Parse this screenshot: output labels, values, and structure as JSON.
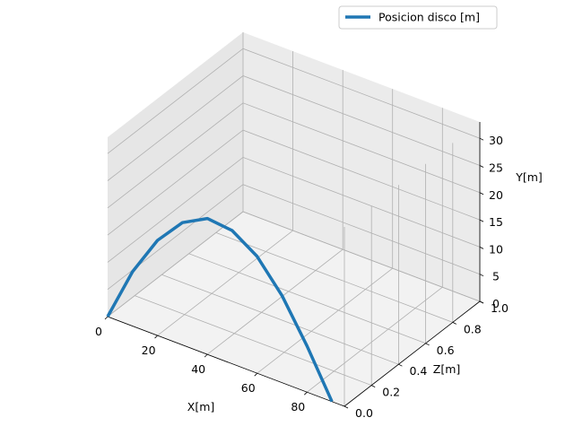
{
  "chart_data": {
    "type": "line",
    "projection": "3d",
    "title": "",
    "xlabel": "X[m]",
    "ylabel": "Y[m]",
    "zlabel": "Z[m]",
    "xlim": [
      0,
      95
    ],
    "ylim": [
      0,
      33
    ],
    "zlim": [
      0,
      1
    ],
    "xticks": [
      "0",
      "20",
      "40",
      "60",
      "80"
    ],
    "yticks": [
      "0",
      "5",
      "10",
      "15",
      "20",
      "25",
      "30"
    ],
    "zticks": [
      "0.0",
      "0.2",
      "0.4",
      "0.6",
      "0.8",
      "1.0"
    ],
    "grid": true,
    "legend_position": "top-right",
    "series": [
      {
        "name": "Posicion disco [m]",
        "color": "#1f77b4",
        "x": [
          0,
          10,
          20,
          30,
          40,
          50,
          60,
          70,
          80,
          90
        ],
        "y": [
          0,
          10,
          17.5,
          22.5,
          25,
          24.5,
          21.5,
          16,
          8.5,
          0
        ],
        "z": [
          0,
          0,
          0,
          0,
          0,
          0,
          0,
          0,
          0,
          0
        ]
      }
    ]
  }
}
